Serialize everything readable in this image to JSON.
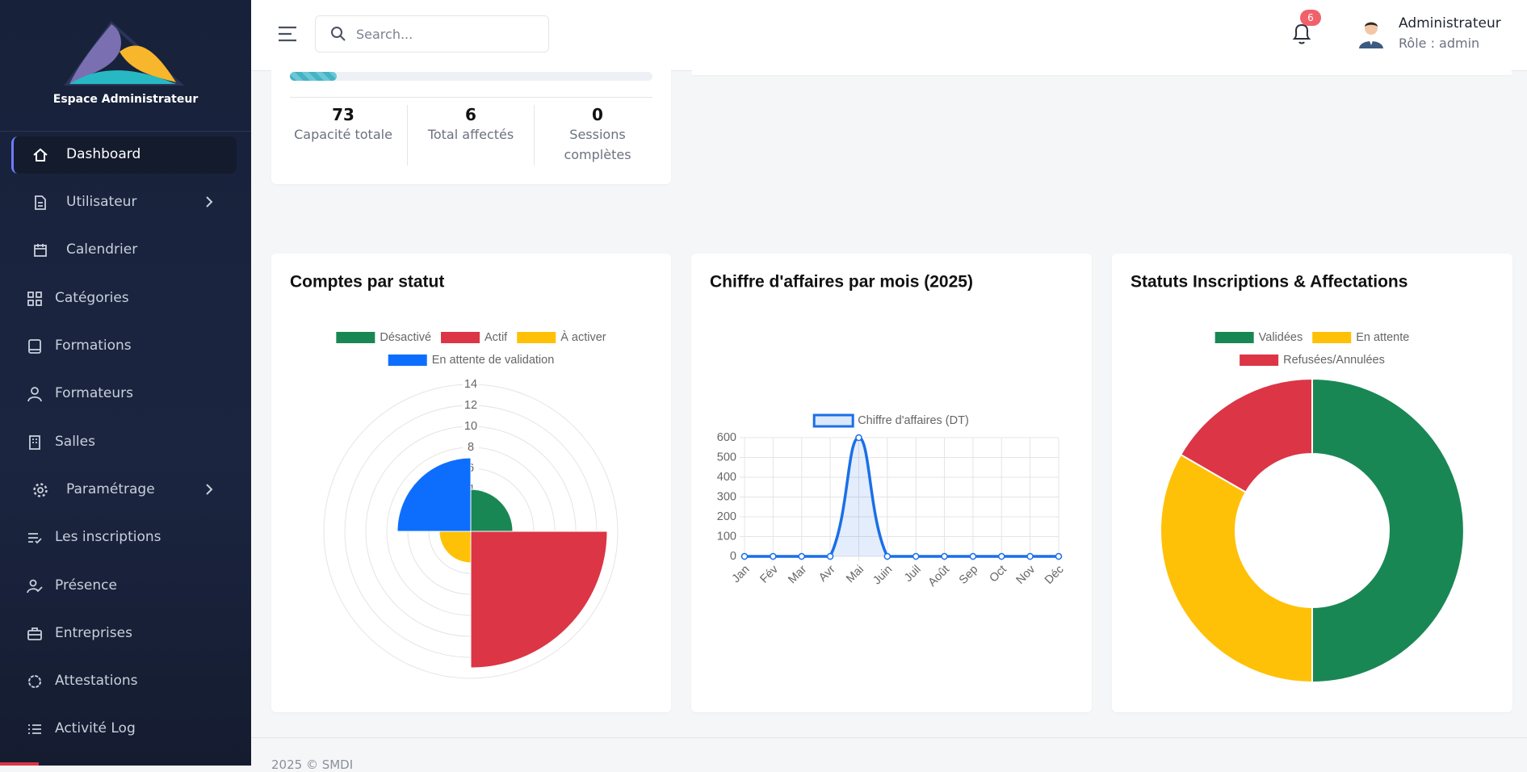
{
  "sidebar": {
    "brand": "Espace Administrateur",
    "menu": [
      "Dashboard",
      "Utilisateur",
      "Calendrier",
      "Catégories",
      "Formations",
      "Formateurs",
      "Salles",
      "Paramétrage",
      "Les inscriptions",
      "Présence",
      "Entreprises",
      "Attestations",
      "Activité Log"
    ]
  },
  "header": {
    "search_placeholder": "Search...",
    "notifications": 6,
    "user_name": "Administrateur",
    "user_role": "Rôle : admin"
  },
  "summary": {
    "stats": [
      {
        "value": 73,
        "label": "Capacité totale"
      },
      {
        "value": 6,
        "label": "Total affectés"
      },
      {
        "value": 0,
        "label": "Sessions complètes"
      }
    ]
  },
  "chart_data": [
    {
      "type": "polarArea",
      "title": "Comptes par statut",
      "categories": [
        "Désactivé",
        "Actif",
        "À activer",
        "En attente de validation"
      ],
      "values": [
        4,
        13,
        3,
        7
      ],
      "colors": [
        "#198754",
        "#dc3545",
        "#ffc107",
        "#0d6efd"
      ],
      "rlim": [
        0,
        14
      ],
      "rticks": [
        2,
        4,
        6,
        8,
        10,
        12,
        14
      ]
    },
    {
      "type": "line",
      "title": "Chiffre d'affaires par mois (2025)",
      "categories": [
        "Jan",
        "Fév",
        "Mar",
        "Avr",
        "Mai",
        "Juin",
        "Juil",
        "Août",
        "Sep",
        "Oct",
        "Nov",
        "Déc"
      ],
      "series": [
        {
          "name": "Chiffre d'affaires (DT)",
          "color": "#1a6fe8",
          "values": [
            0,
            0,
            0,
            0,
            600,
            0,
            0,
            0,
            0,
            0,
            0,
            0
          ]
        }
      ],
      "ylim": [
        0,
        600
      ],
      "yticks": [
        0,
        100,
        200,
        300,
        400,
        500,
        600
      ],
      "grid": true
    },
    {
      "type": "doughnut",
      "title": "Statuts Inscriptions & Affectations",
      "categories": [
        "Validées",
        "En attente",
        "Refusées/Annulées"
      ],
      "values": [
        3,
        2,
        1
      ],
      "colors": [
        "#198754",
        "#ffc107",
        "#dc3545"
      ]
    }
  ],
  "footer": "2025 © SMDI"
}
